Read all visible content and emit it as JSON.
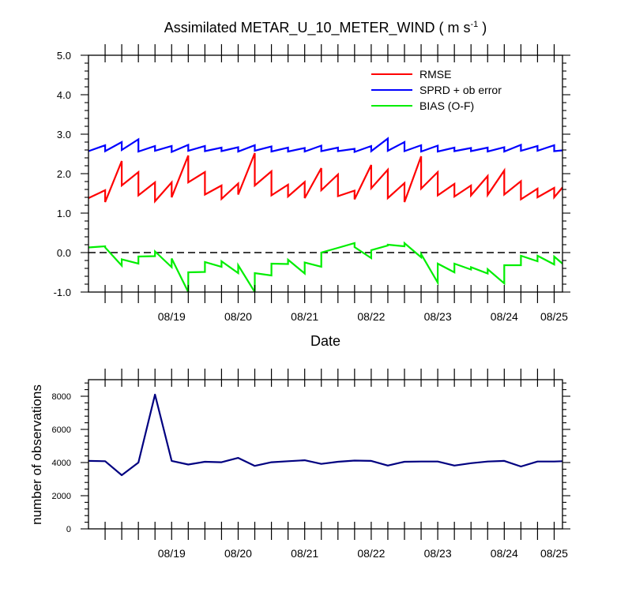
{
  "top_chart": {
    "title_main": "Assimilated METAR_U_10_METER_WIND ( m s",
    "title_sup": "-1",
    "title_end": " )",
    "xlabel": "Date",
    "ylim": [
      -1.0,
      5.0
    ],
    "yticks": [
      -1.0,
      0.0,
      1.0,
      2.0,
      3.0,
      4.0,
      5.0
    ],
    "ytick_labels": [
      "-1.0",
      "0.0",
      "1.0",
      "2.0",
      "3.0",
      "4.0",
      "5.0"
    ],
    "zero_line": true
  },
  "bottom_chart": {
    "ylabel": "number of observations",
    "ylim": [
      0,
      9000
    ],
    "yticks": [
      0,
      2000,
      4000,
      6000,
      8000
    ],
    "ytick_labels": [
      "0",
      "2000",
      "4000",
      "6000",
      "8000"
    ]
  },
  "x_tick_labels": [
    "08/19",
    "08/20",
    "08/21",
    "08/22",
    "08/23",
    "08/24",
    "08/25"
  ],
  "chart_data": [
    {
      "type": "line",
      "title": "Assimilated METAR_U_10_METER_WIND ( m s-1 )",
      "xlabel": "Date",
      "ylabel": "",
      "x_unit": "days since 08/18 00Z",
      "xlim": [
        0.0,
        7.125
      ],
      "ylim": [
        -1.0,
        5.0
      ],
      "legend_position": "top-right",
      "series": [
        {
          "name": "RMSE",
          "color": "#ff0000",
          "x": [
            0.0,
            0.25,
            0.25,
            0.5,
            0.5,
            0.75,
            0.75,
            1.0,
            1.0,
            1.25,
            1.25,
            1.5,
            1.5,
            1.75,
            1.75,
            2.0,
            2.0,
            2.25,
            2.25,
            2.5,
            2.5,
            2.75,
            2.75,
            3.0,
            3.0,
            3.25,
            3.25,
            3.5,
            3.5,
            3.75,
            3.75,
            4.0,
            4.0,
            4.25,
            4.25,
            4.5,
            4.5,
            4.75,
            4.75,
            5.0,
            5.0,
            5.25,
            5.25,
            5.5,
            5.5,
            5.75,
            5.75,
            6.0,
            6.0,
            6.25,
            6.25,
            6.5,
            6.5,
            6.75,
            6.75,
            7.0,
            7.0,
            7.125
          ],
          "y": [
            1.38,
            1.58,
            1.28,
            2.32,
            1.7,
            2.04,
            1.45,
            1.78,
            1.3,
            1.78,
            1.4,
            2.46,
            1.78,
            2.04,
            1.47,
            1.7,
            1.36,
            1.75,
            1.47,
            2.52,
            1.7,
            2.06,
            1.45,
            1.72,
            1.42,
            1.79,
            1.38,
            2.14,
            1.58,
            1.98,
            1.43,
            1.57,
            1.35,
            2.22,
            1.63,
            2.1,
            1.38,
            1.76,
            1.28,
            2.44,
            1.62,
            2.04,
            1.45,
            1.74,
            1.42,
            1.7,
            1.45,
            1.94,
            1.46,
            2.08,
            1.47,
            1.81,
            1.35,
            1.62,
            1.4,
            1.64,
            1.4,
            1.65
          ]
        },
        {
          "name": "SPRD + ob error",
          "color": "#0000ff",
          "x": [
            0.0,
            0.25,
            0.25,
            0.5,
            0.5,
            0.75,
            0.75,
            1.0,
            1.0,
            1.25,
            1.25,
            1.5,
            1.5,
            1.75,
            1.75,
            2.0,
            2.0,
            2.25,
            2.25,
            2.5,
            2.5,
            2.75,
            2.75,
            3.0,
            3.0,
            3.25,
            3.25,
            3.5,
            3.5,
            3.75,
            3.75,
            4.0,
            4.0,
            4.25,
            4.25,
            4.5,
            4.5,
            4.75,
            4.75,
            5.0,
            5.0,
            5.25,
            5.25,
            5.5,
            5.5,
            5.75,
            5.75,
            6.0,
            6.0,
            6.25,
            6.25,
            6.5,
            6.5,
            6.75,
            6.75,
            7.0,
            7.0,
            7.125
          ],
          "y": [
            2.57,
            2.72,
            2.57,
            2.8,
            2.6,
            2.87,
            2.56,
            2.7,
            2.58,
            2.7,
            2.55,
            2.73,
            2.58,
            2.7,
            2.57,
            2.66,
            2.57,
            2.67,
            2.56,
            2.72,
            2.58,
            2.69,
            2.56,
            2.66,
            2.56,
            2.65,
            2.56,
            2.71,
            2.57,
            2.66,
            2.57,
            2.63,
            2.55,
            2.7,
            2.57,
            2.89,
            2.58,
            2.8,
            2.57,
            2.72,
            2.56,
            2.71,
            2.56,
            2.66,
            2.57,
            2.65,
            2.57,
            2.66,
            2.56,
            2.67,
            2.56,
            2.73,
            2.58,
            2.7,
            2.58,
            2.72,
            2.57,
            2.59
          ]
        },
        {
          "name": "BIAS (O-F)",
          "color": "#00ee00",
          "x": [
            0.0,
            0.25,
            0.25,
            0.5,
            0.5,
            0.75,
            0.75,
            1.0,
            1.0,
            1.25,
            1.25,
            1.5,
            1.5,
            1.75,
            1.75,
            2.0,
            2.0,
            2.25,
            2.25,
            2.5,
            2.5,
            2.75,
            2.75,
            3.0,
            3.0,
            3.25,
            3.25,
            3.5,
            3.5,
            3.75,
            3.75,
            4.0,
            4.0,
            4.25,
            4.25,
            4.5,
            4.5,
            4.75,
            4.75,
            5.0,
            5.0,
            5.25,
            5.25,
            5.5,
            5.5,
            5.75,
            5.75,
            6.0,
            6.0,
            6.25,
            6.25,
            6.5,
            6.5,
            6.75,
            6.75,
            7.0,
            7.0,
            7.125
          ],
          "y": [
            0.13,
            0.16,
            0.13,
            -0.33,
            -0.17,
            -0.28,
            -0.1,
            -0.09,
            0.03,
            -0.37,
            -0.15,
            -1.0,
            -0.5,
            -0.49,
            -0.24,
            -0.36,
            -0.22,
            -0.52,
            -0.32,
            -1.0,
            -0.52,
            -0.58,
            -0.28,
            -0.29,
            -0.18,
            -0.53,
            -0.25,
            -0.36,
            0.0,
            0.12,
            0.12,
            0.24,
            0.14,
            -0.14,
            0.06,
            0.18,
            0.2,
            0.16,
            0.24,
            -0.12,
            -0.04,
            -0.76,
            -0.28,
            -0.5,
            -0.28,
            -0.43,
            -0.37,
            -0.53,
            -0.42,
            -0.78,
            -0.32,
            -0.32,
            -0.08,
            -0.22,
            -0.08,
            -0.3,
            -0.1,
            -0.28
          ]
        }
      ],
      "reference_line": {
        "y": 0.0,
        "style": "dashed"
      }
    },
    {
      "type": "line",
      "title": "",
      "xlabel": "",
      "ylabel": "number of observations",
      "x_unit": "days since 08/18 00Z",
      "xlim": [
        0.0,
        7.125
      ],
      "ylim": [
        0,
        9000
      ],
      "series": [
        {
          "name": "number of observations",
          "color": "#000080",
          "x": [
            0.0,
            0.25,
            0.5,
            0.75,
            1.0,
            1.25,
            1.5,
            1.75,
            2.0,
            2.25,
            2.5,
            2.75,
            3.0,
            3.25,
            3.5,
            3.75,
            4.0,
            4.25,
            4.5,
            4.75,
            5.0,
            5.25,
            5.5,
            5.75,
            6.0,
            6.25,
            6.5,
            6.75,
            7.0,
            7.125
          ],
          "y": [
            4100,
            4080,
            3240,
            4000,
            8100,
            4100,
            3880,
            4050,
            4020,
            4280,
            3800,
            4020,
            4080,
            4140,
            3920,
            4050,
            4120,
            4100,
            3820,
            4050,
            4060,
            4060,
            3820,
            3960,
            4060,
            4100,
            3760,
            4060,
            4060,
            4080
          ]
        }
      ]
    }
  ]
}
